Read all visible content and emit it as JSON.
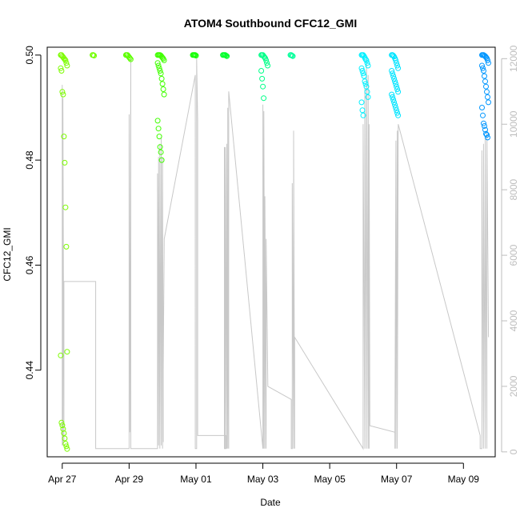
{
  "chart_data": {
    "type": "scatter",
    "title": "ATOM4 Southbound CFC12_GMI",
    "xlabel": "Date",
    "ylabel": "CFC12_GMI",
    "x_ticks": [
      "Apr 27",
      "Apr 29",
      "May 01",
      "May 03",
      "May 05",
      "May 07",
      "May 09"
    ],
    "y_ticks": [
      "0.44",
      "0.46",
      "0.48",
      "0.50"
    ],
    "y2_ticks": [
      "0",
      "2000",
      "4000",
      "6000",
      "8000",
      "10000",
      "12000"
    ],
    "xlim": [
      "Apr 26.55",
      "May 09.95"
    ],
    "ylim": [
      0.4235,
      0.5015
    ],
    "y2lim": [
      -150,
      12350
    ],
    "grid": false,
    "series": [
      {
        "role": "altitude_trace_secondary_axis",
        "color": "#c8c8c8",
        "points": [
          [
            "Apr 27.00",
            200
          ],
          [
            "Apr 27.00",
            11200
          ],
          [
            "Apr 27.02",
            200
          ],
          [
            "Apr 27.02",
            10800
          ],
          [
            "Apr 27.05",
            300
          ],
          [
            "Apr 27.05",
            5200
          ],
          [
            "Apr 28.00",
            5200
          ],
          [
            "Apr 28.00",
            100
          ],
          [
            "Apr 28.00",
            100
          ],
          [
            "Apr 29.00",
            100
          ],
          [
            "Apr 29.00",
            10300
          ],
          [
            "Apr 29.02",
            600
          ],
          [
            "Apr 29.05",
            12000
          ],
          [
            "Apr 29.05",
            100
          ],
          [
            "Apr 29.85",
            100
          ],
          [
            "Apr 29.85",
            8500
          ],
          [
            "Apr 29.88",
            200
          ],
          [
            "Apr 29.88",
            9000
          ],
          [
            "Apr 29.92",
            100
          ],
          [
            "Apr 29.92",
            9400
          ],
          [
            "Apr 29.96",
            200
          ],
          [
            "Apr 29.96",
            9600
          ],
          [
            "Apr 30.00",
            100
          ],
          [
            "Apr 30.00",
            9000
          ],
          [
            "Apr 30.02",
            300
          ],
          [
            "Apr 30.02",
            2500
          ],
          [
            "Apr 30.05",
            6500
          ],
          [
            "Apr 30.98",
            11500
          ],
          [
            "Apr 30.98",
            100
          ],
          [
            "May 01.02",
            100
          ],
          [
            "May 01.02",
            12000
          ],
          [
            "May 01.05",
            10100
          ],
          [
            "May 01.05",
            500
          ],
          [
            "May 01.90",
            500
          ],
          [
            "May 01.90",
            100
          ],
          [
            "May 01.85",
            100
          ],
          [
            "May 01.85",
            9300
          ],
          [
            "May 01.88",
            100
          ],
          [
            "May 01.88",
            9300
          ],
          [
            "May 01.92",
            100
          ],
          [
            "May 01.92",
            9400
          ],
          [
            "May 01.95",
            100
          ],
          [
            "May 01.95",
            10500
          ],
          [
            "May 01.98",
            100
          ],
          [
            "May 01.98",
            11000
          ],
          [
            "May 03.00",
            100
          ],
          [
            "May 03.00",
            10600
          ],
          [
            "May 03.03",
            100
          ],
          [
            "May 03.03",
            10400
          ],
          [
            "May 03.06",
            100
          ],
          [
            "May 03.06",
            7800
          ],
          [
            "May 03.10",
            100
          ],
          [
            "May 03.10",
            6500
          ],
          [
            "May 03.15",
            2000
          ],
          [
            "May 03.85",
            1600
          ],
          [
            "May 03.85",
            100
          ],
          [
            "May 03.88",
            100
          ],
          [
            "May 03.88",
            8200
          ],
          [
            "May 03.92",
            100
          ],
          [
            "May 03.92",
            9800
          ],
          [
            "May 03.95",
            100
          ],
          [
            "May 03.95",
            3500
          ],
          [
            "May 06.00",
            100
          ],
          [
            "May 06.00",
            10000
          ],
          [
            "May 06.05",
            100
          ],
          [
            "May 06.05",
            11100
          ],
          [
            "May 06.10",
            100
          ],
          [
            "May 06.10",
            12000
          ],
          [
            "May 06.15",
            100
          ],
          [
            "May 06.15",
            11500
          ],
          [
            "May 06.18",
            100
          ],
          [
            "May 06.18",
            10000
          ],
          [
            "May 06.20",
            800
          ],
          [
            "May 06.95",
            600
          ],
          [
            "May 06.95",
            100
          ],
          [
            "May 06.98",
            9500
          ],
          [
            "May 06.98",
            100
          ],
          [
            "May 07.02",
            9800
          ],
          [
            "May 07.02",
            100
          ],
          [
            "May 07.05",
            10000
          ],
          [
            "May 09.50",
            500
          ],
          [
            "May 09.50",
            100
          ],
          [
            "May 09.55",
            100
          ],
          [
            "May 09.55",
            9200
          ],
          [
            "May 09.60",
            100
          ],
          [
            "May 09.60",
            9400
          ],
          [
            "May 09.65",
            100
          ],
          [
            "May 09.65",
            9600
          ],
          [
            "May 09.70",
            100
          ],
          [
            "May 09.70",
            9800
          ],
          [
            "May 09.75",
            3500
          ]
        ]
      },
      {
        "role": "cfc12_samples",
        "colored_by": "time (green to blue)",
        "bursts": [
          {
            "time": "Apr 27.05",
            "color": "#7cfc00",
            "values": [
              0.5,
              0.5,
              0.4998,
              0.4996,
              0.4994,
              0.4992,
              0.499,
              0.4985,
              0.498,
              0.4975,
              0.497,
              0.493,
              0.4925,
              0.4845,
              0.4795,
              0.471,
              0.4635,
              0.4435,
              0.4428,
              0.43,
              0.4295,
              0.4288,
              0.428,
              0.427,
              0.426,
              0.4255,
              0.425
            ]
          },
          {
            "time": "Apr 28.00",
            "color": "#72ff00",
            "values": [
              0.5,
              0.5,
              0.4999
            ]
          },
          {
            "time": "Apr 29.00",
            "color": "#5cff00",
            "values": [
              0.5,
              0.5,
              0.5,
              0.4998,
              0.4996,
              0.4994,
              0.4992
            ]
          },
          {
            "time": "Apr 29.95",
            "color": "#40ff00",
            "values": [
              0.5,
              0.5,
              0.5,
              0.5,
              0.4999,
              0.4997,
              0.4995,
              0.4993,
              0.499,
              0.4985,
              0.498,
              0.4975,
              0.497,
              0.4965,
              0.4955,
              0.4945,
              0.4935,
              0.4925,
              0.4875,
              0.486,
              0.4845,
              0.4825,
              0.4815,
              0.48
            ]
          },
          {
            "time": "May 01.00",
            "color": "#10ff00",
            "values": [
              0.5,
              0.5,
              0.5,
              0.5,
              0.4999
            ]
          },
          {
            "time": "May 01.90",
            "color": "#00ff2a",
            "values": [
              0.5,
              0.5,
              0.5,
              0.5,
              0.4999,
              0.4998
            ]
          },
          {
            "time": "May 03.05",
            "color": "#00ff88",
            "values": [
              0.5,
              0.5,
              0.5,
              0.4998,
              0.4996,
              0.4994,
              0.499,
              0.4985,
              0.498,
              0.497,
              0.4955,
              0.494,
              0.4918
            ]
          },
          {
            "time": "May 03.92",
            "color": "#00ff9a",
            "values": [
              0.5,
              0.5,
              0.4999,
              0.4998
            ]
          },
          {
            "time": "May 06.05",
            "color": "#00f0ff",
            "values": [
              0.5,
              0.5,
              0.5,
              0.4998,
              0.4995,
              0.4992,
              0.499,
              0.4985,
              0.498,
              0.4975,
              0.497,
              0.4965,
              0.496,
              0.495,
              0.4945,
              0.494,
              0.493,
              0.492,
              0.491,
              0.4895,
              0.4885
            ]
          },
          {
            "time": "May 06.95",
            "color": "#00e4ff",
            "values": [
              0.5,
              0.5,
              0.4999,
              0.4997,
              0.4994,
              0.499,
              0.4985,
              0.498,
              0.4975,
              0.497,
              0.4965,
              0.496,
              0.4955,
              0.495,
              0.4945,
              0.494,
              0.4935,
              0.493,
              0.4925,
              0.492,
              0.4915,
              0.491,
              0.4905,
              0.49,
              0.4895,
              0.489,
              0.4885
            ]
          },
          {
            "time": "May 09.65",
            "color": "#0096ff",
            "values": [
              0.5,
              0.5,
              0.5,
              0.4999,
              0.4998,
              0.4996,
              0.4994,
              0.499,
              0.4985,
              0.498,
              0.4975,
              0.497,
              0.496,
              0.495,
              0.494,
              0.493,
              0.492,
              0.491,
              0.49,
              0.4885,
              0.487,
              0.4865,
              0.4858,
              0.485,
              0.4848,
              0.4843
            ]
          }
        ]
      }
    ]
  }
}
